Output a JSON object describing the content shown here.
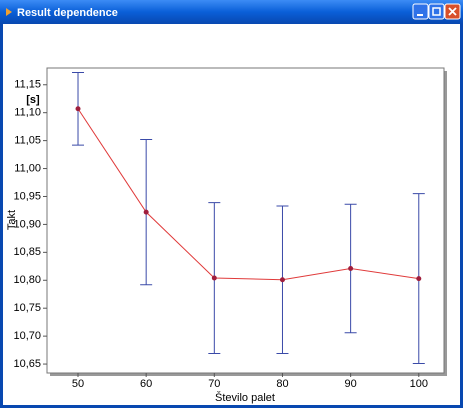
{
  "window": {
    "title": "Result dependence"
  },
  "chart_data": {
    "type": "errorbar-line",
    "x_label": "Število palet",
    "y_label": "Takt",
    "y_unit": "[s]",
    "x": [
      50,
      60,
      70,
      80,
      90,
      100
    ],
    "values": [
      11.107,
      10.922,
      10.804,
      10.801,
      10.821,
      10.803
    ],
    "errors": [
      0.065,
      0.13,
      0.135,
      0.132,
      0.115,
      0.152
    ],
    "color": "#e03a3a",
    "marker_color": "#a01e3c",
    "error_color": "#3a4aa8",
    "xlim": [
      45.45,
      103.7
    ],
    "ylim": [
      10.634,
      11.18
    ],
    "xticks": [
      50,
      60,
      70,
      80,
      90,
      100
    ],
    "yticks": [
      {
        "value": 10.65,
        "label": "10,65"
      },
      {
        "value": 10.7,
        "label": "10,70"
      },
      {
        "value": 10.75,
        "label": "10,75"
      },
      {
        "value": 10.8,
        "label": "10,80"
      },
      {
        "value": 10.85,
        "label": "10,85"
      },
      {
        "value": 10.9,
        "label": "10,90"
      },
      {
        "value": 10.95,
        "label": "10,95"
      },
      {
        "value": 11.0,
        "label": "11,00"
      },
      {
        "value": 11.05,
        "label": "11,05"
      },
      {
        "value": 11.1,
        "label": "11,10"
      },
      {
        "value": 11.15,
        "label": "11,15"
      }
    ]
  }
}
